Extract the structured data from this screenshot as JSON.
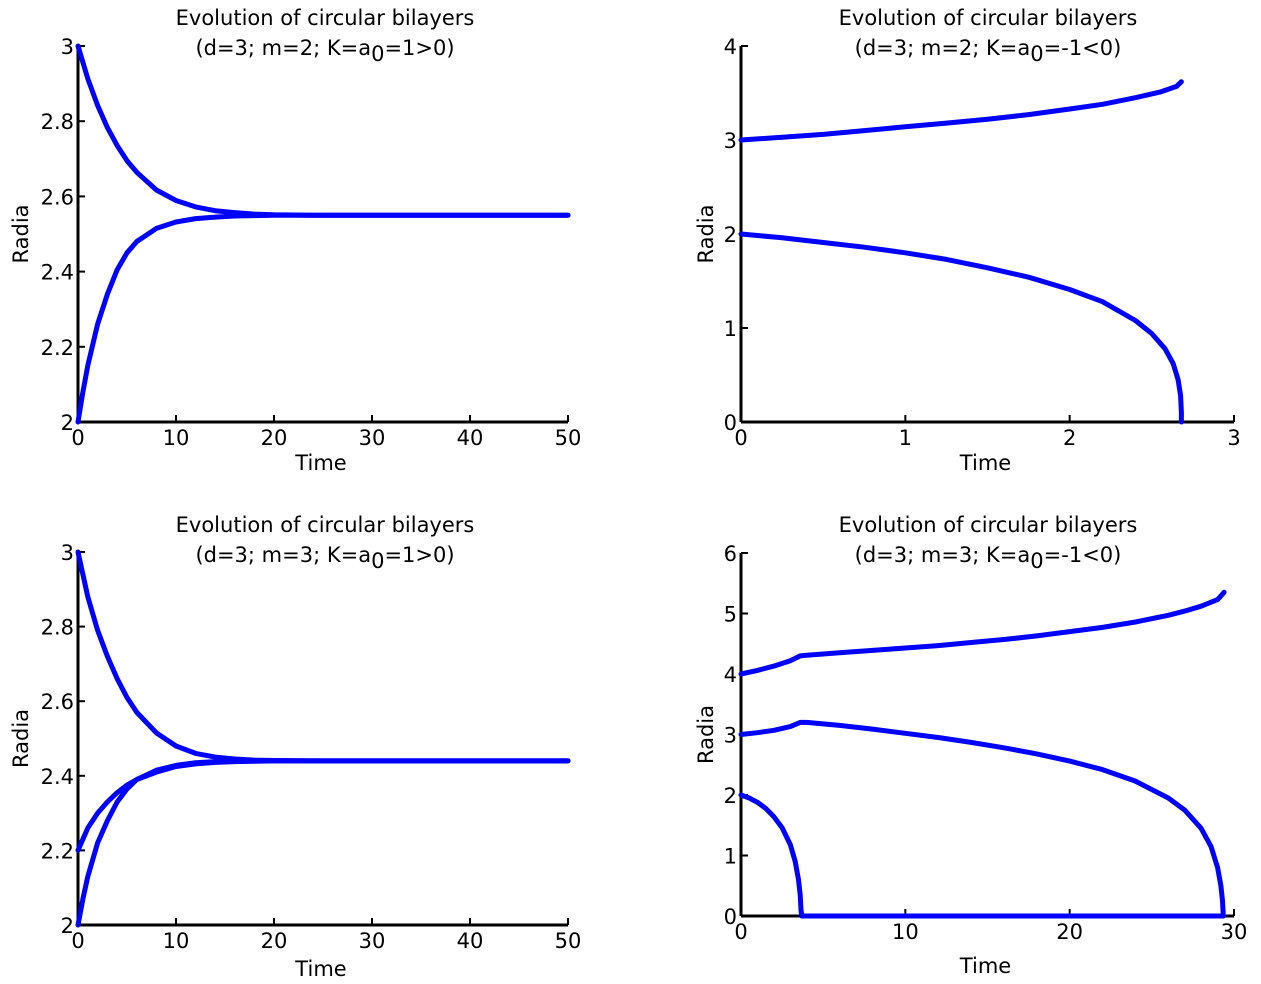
{
  "chart_data": [
    {
      "type": "line",
      "title": "Evolution of circular bilayers",
      "subtitle": "(d=3; m=2; K=a0=1>0)",
      "xlabel": "Time",
      "ylabel": "Radia",
      "xlim": [
        0,
        50
      ],
      "ylim": [
        2,
        3
      ],
      "xticks": [
        "0",
        "10",
        "20",
        "30",
        "40",
        "50"
      ],
      "yticks": [
        "2",
        "2.2",
        "2.4",
        "2.6",
        "2.8",
        "3"
      ],
      "color": "#0000ff",
      "series": [
        {
          "x": [
            0,
            1,
            2,
            3,
            4,
            5,
            6,
            8,
            10,
            12,
            14,
            16,
            18,
            20,
            24,
            28,
            35,
            50
          ],
          "values": [
            3.0,
            2.913,
            2.842,
            2.783,
            2.735,
            2.695,
            2.664,
            2.617,
            2.589,
            2.572,
            2.562,
            2.557,
            2.553,
            2.551,
            2.55,
            2.55,
            2.55,
            2.55
          ]
        },
        {
          "x": [
            0,
            0.5,
            1,
            2,
            3,
            4,
            5,
            6,
            8,
            10,
            12,
            14,
            16,
            18,
            20,
            24,
            28,
            35,
            50
          ],
          "values": [
            2.0,
            2.08,
            2.15,
            2.26,
            2.34,
            2.405,
            2.45,
            2.48,
            2.515,
            2.532,
            2.541,
            2.545,
            2.548,
            2.549,
            2.55,
            2.55,
            2.55,
            2.55,
            2.55
          ]
        }
      ]
    },
    {
      "type": "line",
      "title": "Evolution of circular bilayers",
      "subtitle": "(d=3; m=2; K=a0=-1<0)",
      "xlabel": "Time",
      "ylabel": "Radia",
      "xlim": [
        0,
        3
      ],
      "ylim": [
        0,
        4
      ],
      "xticks": [
        "0",
        "1",
        "2",
        "3"
      ],
      "yticks": [
        "0",
        "1",
        "2",
        "3",
        "4"
      ],
      "color": "#0000ff",
      "series": [
        {
          "x": [
            0,
            0.25,
            0.5,
            0.75,
            1.0,
            1.25,
            1.5,
            1.75,
            2.0,
            2.2,
            2.4,
            2.55,
            2.65,
            2.68
          ],
          "values": [
            3.0,
            3.03,
            3.06,
            3.1,
            3.14,
            3.18,
            3.22,
            3.27,
            3.33,
            3.38,
            3.45,
            3.51,
            3.57,
            3.62
          ]
        },
        {
          "x": [
            0,
            0.25,
            0.5,
            0.75,
            1.0,
            1.25,
            1.5,
            1.75,
            2.0,
            2.2,
            2.4,
            2.5,
            2.58,
            2.63,
            2.66,
            2.675,
            2.68,
            2.68
          ],
          "values": [
            2.0,
            1.96,
            1.91,
            1.86,
            1.8,
            1.73,
            1.64,
            1.54,
            1.41,
            1.28,
            1.08,
            0.94,
            0.78,
            0.62,
            0.45,
            0.28,
            0.1,
            0.0
          ]
        }
      ]
    },
    {
      "type": "line",
      "title": "Evolution of circular bilayers",
      "subtitle": "(d=3; m=3; K=a0=1>0)",
      "xlabel": "Time",
      "ylabel": "Radia",
      "xlim": [
        0,
        50
      ],
      "ylim": [
        2,
        3
      ],
      "xticks": [
        "0",
        "10",
        "20",
        "30",
        "40",
        "50"
      ],
      "yticks": [
        "2",
        "2.2",
        "2.4",
        "2.6",
        "2.8",
        "3"
      ],
      "color": "#0000ff",
      "series": [
        {
          "x": [
            0,
            1,
            2,
            3,
            4,
            5,
            6,
            8,
            10,
            12,
            14,
            16,
            18,
            20,
            24,
            28,
            35,
            50
          ],
          "values": [
            3.0,
            2.88,
            2.79,
            2.72,
            2.66,
            2.61,
            2.57,
            2.515,
            2.48,
            2.46,
            2.45,
            2.445,
            2.442,
            2.441,
            2.44,
            2.44,
            2.44,
            2.44
          ]
        },
        {
          "x": [
            0,
            1,
            2,
            3,
            4,
            5,
            6,
            8,
            10,
            12,
            14,
            16,
            18,
            20,
            24,
            28,
            35,
            50
          ],
          "values": [
            2.2,
            2.26,
            2.3,
            2.33,
            2.355,
            2.375,
            2.39,
            2.41,
            2.425,
            2.432,
            2.436,
            2.438,
            2.439,
            2.44,
            2.44,
            2.44,
            2.44,
            2.44
          ]
        },
        {
          "x": [
            0,
            0.5,
            1,
            2,
            3,
            4,
            5,
            6,
            8,
            10,
            12,
            14,
            16,
            18,
            20,
            24,
            28,
            35,
            50
          ],
          "values": [
            2.0,
            2.07,
            2.13,
            2.22,
            2.28,
            2.33,
            2.365,
            2.39,
            2.415,
            2.428,
            2.435,
            2.438,
            2.439,
            2.44,
            2.44,
            2.44,
            2.44,
            2.44,
            2.44
          ]
        }
      ]
    },
    {
      "type": "line",
      "title": "Evolution of circular bilayers",
      "subtitle": "(d=3; m=3; K=a0=-1<0)",
      "xlabel": "Time",
      "ylabel": "Radia",
      "xlim": [
        0,
        30
      ],
      "ylim": [
        0,
        6
      ],
      "xticks": [
        "0",
        "10",
        "20",
        "30"
      ],
      "yticks": [
        "0",
        "1",
        "2",
        "3",
        "4",
        "5",
        "6"
      ],
      "color": "#0000ff",
      "series": [
        {
          "x": [
            0,
            1,
            2,
            3,
            3.6,
            4,
            6,
            8,
            10,
            12,
            14,
            16,
            18,
            20,
            22,
            24,
            26,
            27,
            28,
            29,
            29.4
          ],
          "values": [
            4.0,
            4.06,
            4.13,
            4.22,
            4.3,
            4.31,
            4.35,
            4.39,
            4.43,
            4.47,
            4.52,
            4.57,
            4.63,
            4.7,
            4.77,
            4.86,
            4.97,
            5.04,
            5.12,
            5.23,
            5.35
          ]
        },
        {
          "x": [
            0,
            1,
            2,
            3,
            3.6,
            4,
            6,
            8,
            10,
            12,
            14,
            16,
            18,
            20,
            22,
            24,
            26,
            27,
            28,
            28.6,
            29.0,
            29.2,
            29.3,
            29.35
          ],
          "values": [
            3.0,
            3.03,
            3.07,
            3.13,
            3.2,
            3.2,
            3.15,
            3.09,
            3.02,
            2.95,
            2.87,
            2.78,
            2.68,
            2.56,
            2.42,
            2.23,
            1.95,
            1.75,
            1.45,
            1.15,
            0.8,
            0.5,
            0.25,
            0.0
          ]
        },
        {
          "x": [
            0,
            0.5,
            1,
            1.5,
            2,
            2.5,
            3,
            3.3,
            3.5,
            3.6,
            3.65,
            3.7,
            10,
            20,
            29.35
          ],
          "values": [
            2.0,
            1.95,
            1.88,
            1.78,
            1.64,
            1.46,
            1.18,
            0.9,
            0.6,
            0.35,
            0.1,
            0.0,
            0.0,
            0.0,
            0.0
          ]
        }
      ]
    }
  ]
}
